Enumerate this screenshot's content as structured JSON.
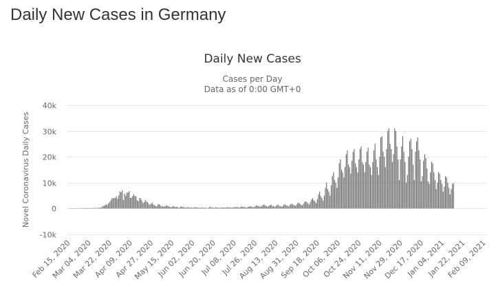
{
  "page": {
    "title": "Daily New Cases in Germany"
  },
  "colors": {
    "bar": "#666666",
    "grid": "#e6e6e6",
    "axis_text": "#666666",
    "title_text": "#333333"
  },
  "chart_data": {
    "type": "bar",
    "title": "Daily New Cases",
    "subtitle_lines": [
      "Cases per Day",
      "Data as of 0:00 GMT+0"
    ],
    "xlabel": "",
    "ylabel": "Novel Coronavirus Daily Cases",
    "ylim": [
      -10000,
      40000
    ],
    "yticks": [
      {
        "value": 40000,
        "label": "40k"
      },
      {
        "value": 30000,
        "label": "30k"
      },
      {
        "value": 20000,
        "label": "20k"
      },
      {
        "value": 10000,
        "label": "10k"
      },
      {
        "value": 0,
        "label": "0"
      },
      {
        "value": -10000,
        "label": "-10k"
      }
    ],
    "xticks": [
      {
        "day": 0,
        "label": "Feb 15, 2020"
      },
      {
        "day": 18,
        "label": "Mar 04, 2020"
      },
      {
        "day": 36,
        "label": "Mar 22, 2020"
      },
      {
        "day": 54,
        "label": "Apr 09, 2020"
      },
      {
        "day": 72,
        "label": "Apr 27, 2020"
      },
      {
        "day": 90,
        "label": "May 15, 2020"
      },
      {
        "day": 108,
        "label": "Jun 02, 2020"
      },
      {
        "day": 126,
        "label": "Jun 20, 2020"
      },
      {
        "day": 144,
        "label": "Jul 08, 2020"
      },
      {
        "day": 162,
        "label": "Jul 26, 2020"
      },
      {
        "day": 180,
        "label": "Aug 13, 2020"
      },
      {
        "day": 198,
        "label": "Aug 31, 2020"
      },
      {
        "day": 216,
        "label": "Sep 18, 2020"
      },
      {
        "day": 234,
        "label": "Oct 06, 2020"
      },
      {
        "day": 252,
        "label": "Oct 24, 2020"
      },
      {
        "day": 270,
        "label": "Nov 11, 2020"
      },
      {
        "day": 288,
        "label": "Nov 29, 2020"
      },
      {
        "day": 306,
        "label": "Dec 17, 2020"
      },
      {
        "day": 324,
        "label": "Jan 04, 2021"
      },
      {
        "day": 342,
        "label": "Jan 22, 2021"
      },
      {
        "day": 360,
        "label": "Feb 09, 2021"
      }
    ],
    "x_start": "Feb 15, 2020",
    "x_end": "Feb 12, 2021",
    "series": [
      {
        "name": "Daily Cases",
        "values": [
          0,
          0,
          0,
          0,
          0,
          0,
          0,
          0,
          0,
          0,
          1,
          11,
          14,
          27,
          9,
          45,
          35,
          17,
          58,
          43,
          149,
          34,
          271,
          196,
          80,
          259,
          270,
          340,
          409,
          890,
          1010,
          1240,
          1610,
          1350,
          1940,
          2420,
          3050,
          3790,
          4100,
          3990,
          4200,
          4700,
          3750,
          5100,
          6580,
          6300,
          7000,
          3240,
          5800,
          4900,
          6100,
          6200,
          6700,
          4100,
          4200,
          4800,
          5500,
          4850,
          4700,
          3200,
          2800,
          4100,
          3900,
          3100,
          2100,
          2500,
          3300,
          2700,
          2400,
          1840,
          1370,
          1900,
          2240,
          1520,
          1300,
          940,
          850,
          1600,
          1640,
          1250,
          780,
          950,
          700,
          800,
          1200,
          1100,
          930,
          650,
          500,
          600,
          950,
          700,
          690,
          560,
          600,
          250,
          450,
          830,
          720,
          540,
          400,
          300,
          400,
          600,
          350,
          340,
          450,
          300,
          300,
          500,
          500,
          320,
          380,
          250,
          300,
          400,
          200,
          300,
          350,
          150,
          200,
          300,
          700,
          500,
          400,
          300,
          250,
          480,
          380,
          350,
          200,
          300,
          400,
          350,
          400,
          300,
          350,
          500,
          450,
          400,
          380,
          300,
          500,
          400,
          600,
          550,
          500,
          400,
          450,
          800,
          700,
          600,
          500,
          450,
          400,
          600,
          800,
          900,
          700,
          600,
          500,
          800,
          1100,
          1200,
          900,
          800,
          700,
          1000,
          1400,
          1500,
          1100,
          900,
          700,
          1000,
          1300,
          1400,
          1000,
          900,
          600,
          900,
          1300,
          1400,
          1000,
          900,
          700,
          1000,
          1500,
          1600,
          1300,
          1100,
          800,
          1200,
          1700,
          1800,
          1500,
          1300,
          1000,
          1500,
          2100,
          2200,
          1800,
          1500,
          1200,
          1800,
          2500,
          2800,
          2400,
          2000,
          1500,
          2500,
          3500,
          4000,
          3200,
          2800,
          2100,
          3500,
          5500,
          6500,
          4800,
          4100,
          3000,
          5000,
          8000,
          10000,
          7500,
          6500,
          5000,
          9000,
          12500,
          14000,
          11000,
          10000,
          8000,
          12000,
          17500,
          19000,
          15000,
          14000,
          12000,
          16000,
          21000,
          22500,
          17000,
          16000,
          13500,
          18500,
          22000,
          23000,
          17500,
          16000,
          14000,
          19000,
          23000,
          24000,
          18000,
          17000,
          14000,
          18000,
          22000,
          23500,
          17000,
          16000,
          13000,
          18000,
          22500,
          25000,
          19000,
          16000,
          13000,
          20000,
          27500,
          28000,
          22000,
          20000,
          16000,
          23000,
          30000,
          31000,
          25000,
          23000,
          18000,
          21000,
          31000,
          30000,
          24000,
          19000,
          11000,
          19000,
          24000,
          28000,
          22000,
          18000,
          10000,
          13000,
          20000,
          26000,
          27000,
          23000,
          17000,
          11000,
          22000,
          26000,
          27500,
          22500,
          19000,
          10500,
          12500,
          18500,
          21000,
          19500,
          15500,
          10500,
          9500,
          14000,
          18000,
          17500,
          14000,
          11000,
          7500,
          10000,
          14000,
          13500,
          11000,
          9500,
          6500,
          8500,
          12500,
          12000,
          10000,
          8000,
          5500,
          7500,
          9500,
          9800
        ]
      }
    ]
  }
}
